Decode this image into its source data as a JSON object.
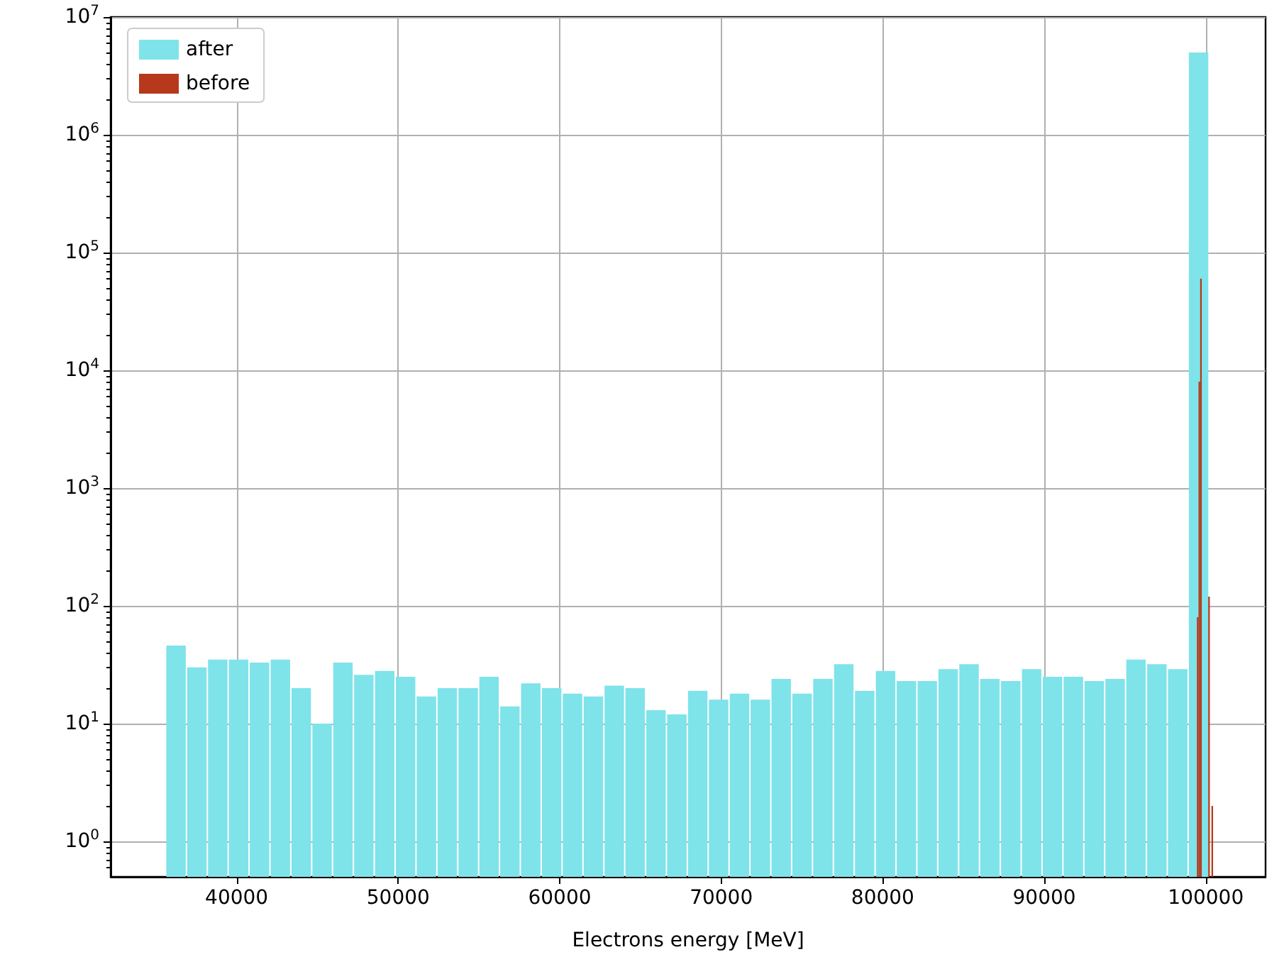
{
  "chart_data": {
    "type": "histogram",
    "xlabel": "Electrons energy [MeV]",
    "log": "y",
    "grid": true,
    "legend": "top left",
    "xlim": [
      32200,
      103700
    ],
    "xticks": [
      40000,
      50000,
      60000,
      70000,
      80000,
      90000,
      100000
    ],
    "ylim": [
      0.5,
      10000000
    ],
    "yticks": [
      {
        "value": 1,
        "label": "10$^{0}$"
      },
      {
        "value": 10,
        "label": "10$^{1}$"
      },
      {
        "value": 100,
        "label": "10$^{2}$"
      },
      {
        "value": 1000,
        "label": "10$^{3}$"
      },
      {
        "value": 10000,
        "label": "10$^{4}$"
      },
      {
        "value": 100000,
        "label": "10$^{5}$"
      },
      {
        "value": 1000000,
        "label": "10$^{6}$"
      },
      {
        "value": 10000000,
        "label": "10$^{7}$"
      }
    ],
    "bins": [
      35600,
      36892,
      38184,
      39476,
      40768,
      42060,
      43352,
      44644,
      45936,
      47228,
      48520,
      49812,
      51104,
      52396,
      53688,
      54980,
      56272,
      57564,
      58856,
      60148,
      61440,
      62732,
      64024,
      65316,
      66608,
      67900,
      69192,
      70484,
      71776,
      73068,
      74360,
      75652,
      76944,
      78236,
      79528,
      80820,
      82112,
      83404,
      84696,
      85988,
      87280,
      88572,
      89864,
      91156,
      92448,
      93740,
      95032,
      96324,
      97616,
      98908,
      100200
    ],
    "series": [
      {
        "name": "after",
        "color": "#7fe3ea",
        "values": [
          46,
          30,
          35,
          35,
          33,
          35,
          20,
          10,
          33,
          26,
          28,
          25,
          17,
          20,
          20,
          25,
          14,
          22,
          20,
          18,
          17,
          21,
          20,
          13,
          12,
          19,
          16,
          18,
          16,
          24,
          18,
          24,
          32,
          19,
          28,
          23,
          23,
          29,
          32,
          24,
          23,
          29,
          25,
          25,
          23,
          24,
          35,
          32,
          29,
          5000000
        ]
      },
      {
        "name": "before",
        "color": "#b5391a",
        "bins": [
          99450,
          99550,
          99650,
          99750,
          100150,
          100250,
          100350,
          100450
        ],
        "values": [
          80,
          8000,
          60000,
          null,
          120,
          null,
          2
        ]
      }
    ]
  }
}
